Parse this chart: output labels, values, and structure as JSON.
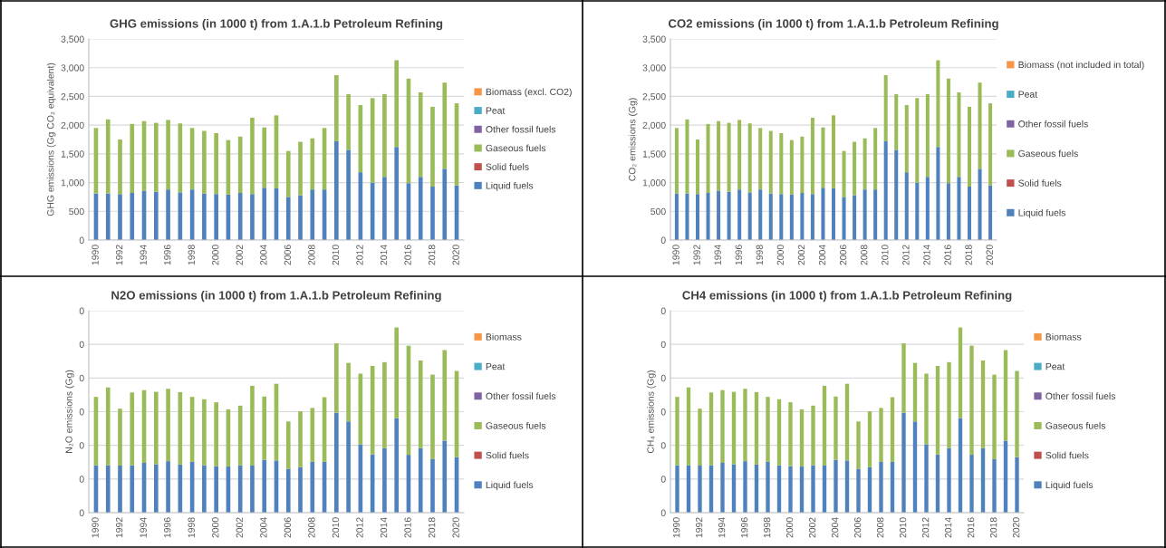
{
  "chart_data": [
    {
      "type": "bar",
      "stacked": true,
      "title": "GHG emissions (in 1000 t) from 1.A.1.b Petroleum Refining",
      "ylabel": "GHG emissions (Gg CO₂ equivalent)",
      "categories": [
        "1990",
        null,
        "1992",
        null,
        "1994",
        null,
        "1996",
        null,
        "1998",
        null,
        "2000",
        null,
        "2002",
        null,
        "2004",
        null,
        "2006",
        null,
        "2008",
        null,
        "2010",
        null,
        "2012",
        null,
        "2014",
        null,
        "2016",
        null,
        "2018",
        null,
        "2020"
      ],
      "ylim": [
        0,
        3500
      ],
      "yticks": [
        {
          "value": 0,
          "label": "0"
        },
        {
          "value": 500,
          "label": "500"
        },
        {
          "value": 1000,
          "label": "1,000"
        },
        {
          "value": 1500,
          "label": "1,500"
        },
        {
          "value": 2000,
          "label": "2,000"
        },
        {
          "value": 2500,
          "label": "2,500"
        },
        {
          "value": 3000,
          "label": "3,000"
        },
        {
          "value": 3500,
          "label": "3,500"
        }
      ],
      "grid": "y",
      "legend": "right",
      "series": [
        {
          "name": "Liquid fuels",
          "color": "#4f81bd",
          "values": [
            810,
            810,
            800,
            820,
            860,
            840,
            880,
            830,
            880,
            810,
            800,
            790,
            820,
            800,
            910,
            900,
            750,
            780,
            880,
            880,
            1720,
            1570,
            1180,
            1000,
            1100,
            1620,
            990,
            1100,
            930,
            1240,
            950
          ]
        },
        {
          "name": "Solid fuels",
          "color": "#c0504d",
          "values": [
            0,
            0,
            0,
            0,
            0,
            0,
            0,
            0,
            0,
            0,
            0,
            0,
            0,
            0,
            0,
            0,
            0,
            0,
            0,
            0,
            0,
            0,
            0,
            0,
            0,
            0,
            0,
            0,
            0,
            0,
            0
          ]
        },
        {
          "name": "Gaseous fuels",
          "color": "#9bbb59",
          "values": [
            1140,
            1290,
            950,
            1200,
            1210,
            1200,
            1210,
            1200,
            1070,
            1090,
            1060,
            950,
            980,
            1330,
            1050,
            1270,
            800,
            930,
            890,
            1070,
            1150,
            970,
            1170,
            1470,
            1440,
            1510,
            1820,
            1470,
            1390,
            1500,
            1430
          ]
        },
        {
          "name": "Other fossil fuels",
          "color": "#8064a2",
          "values": [
            0,
            0,
            0,
            0,
            0,
            0,
            0,
            0,
            0,
            0,
            0,
            0,
            0,
            0,
            0,
            0,
            0,
            0,
            0,
            0,
            0,
            0,
            0,
            0,
            0,
            0,
            0,
            0,
            0,
            0,
            0
          ]
        },
        {
          "name": "Peat",
          "color": "#4bacc6",
          "values": [
            0,
            0,
            0,
            0,
            0,
            0,
            0,
            0,
            0,
            0,
            0,
            0,
            0,
            0,
            0,
            0,
            0,
            0,
            0,
            0,
            0,
            0,
            0,
            0,
            0,
            0,
            0,
            0,
            0,
            0,
            0
          ]
        },
        {
          "name": "Biomass (excl. CO2)",
          "color": "#f79646",
          "values": [
            0,
            0,
            0,
            0,
            0,
            0,
            0,
            0,
            0,
            0,
            0,
            0,
            0,
            0,
            0,
            0,
            0,
            0,
            0,
            0,
            0,
            0,
            0,
            0,
            0,
            0,
            0,
            0,
            0,
            0,
            0
          ]
        }
      ]
    },
    {
      "type": "bar",
      "stacked": true,
      "title": "CO2 emissions (in 1000 t) from 1.A.1.b Petroleum Refining",
      "ylabel": "CO₂ emissions (Gg)",
      "categories": [
        "1990",
        null,
        "1992",
        null,
        "1994",
        null,
        "1996",
        null,
        "1998",
        null,
        "2000",
        null,
        "2002",
        null,
        "2004",
        null,
        "2006",
        null,
        "2008",
        null,
        "2010",
        null,
        "2012",
        null,
        "2014",
        null,
        "2016",
        null,
        "2018",
        null,
        "2020"
      ],
      "ylim": [
        0,
        3500
      ],
      "yticks": [
        {
          "value": 0,
          "label": "0"
        },
        {
          "value": 500,
          "label": "500"
        },
        {
          "value": 1000,
          "label": "1,000"
        },
        {
          "value": 1500,
          "label": "1,500"
        },
        {
          "value": 2000,
          "label": "2,000"
        },
        {
          "value": 2500,
          "label": "2,500"
        },
        {
          "value": 3000,
          "label": "3,000"
        },
        {
          "value": 3500,
          "label": "3,500"
        }
      ],
      "grid": "y",
      "legend": "right",
      "series": [
        {
          "name": "Liquid fuels",
          "color": "#4f81bd",
          "values": [
            810,
            810,
            800,
            820,
            860,
            840,
            880,
            830,
            880,
            810,
            800,
            790,
            820,
            800,
            910,
            900,
            750,
            780,
            880,
            880,
            1720,
            1570,
            1180,
            1000,
            1100,
            1620,
            990,
            1100,
            930,
            1240,
            950
          ]
        },
        {
          "name": "Solid fuels",
          "color": "#c0504d",
          "values": [
            0,
            0,
            0,
            0,
            0,
            0,
            0,
            0,
            0,
            0,
            0,
            0,
            0,
            0,
            0,
            0,
            0,
            0,
            0,
            0,
            0,
            0,
            0,
            0,
            0,
            0,
            0,
            0,
            0,
            0,
            0
          ]
        },
        {
          "name": "Gaseous fuels",
          "color": "#9bbb59",
          "values": [
            1140,
            1290,
            950,
            1200,
            1210,
            1200,
            1210,
            1200,
            1070,
            1090,
            1060,
            950,
            980,
            1330,
            1050,
            1270,
            800,
            930,
            890,
            1070,
            1150,
            970,
            1170,
            1470,
            1440,
            1510,
            1820,
            1470,
            1390,
            1500,
            1430
          ]
        },
        {
          "name": "Other fossil fuels",
          "color": "#8064a2",
          "values": [
            0,
            0,
            0,
            0,
            0,
            0,
            0,
            0,
            0,
            0,
            0,
            0,
            0,
            0,
            0,
            0,
            0,
            0,
            0,
            0,
            0,
            0,
            0,
            0,
            0,
            0,
            0,
            0,
            0,
            0,
            0
          ]
        },
        {
          "name": "Peat",
          "color": "#4bacc6",
          "values": [
            0,
            0,
            0,
            0,
            0,
            0,
            0,
            0,
            0,
            0,
            0,
            0,
            0,
            0,
            0,
            0,
            0,
            0,
            0,
            0,
            0,
            0,
            0,
            0,
            0,
            0,
            0,
            0,
            0,
            0,
            0
          ]
        },
        {
          "name": "Biomass (not included in total)",
          "color": "#f79646",
          "values": [
            0,
            0,
            0,
            0,
            0,
            0,
            0,
            0,
            0,
            0,
            0,
            0,
            0,
            0,
            0,
            0,
            0,
            0,
            0,
            0,
            0,
            0,
            0,
            0,
            0,
            0,
            0,
            0,
            0,
            0,
            0
          ]
        }
      ]
    },
    {
      "type": "bar",
      "stacked": true,
      "title": "N2O emissions (in 1000 t) from 1.A.1.b Petroleum Refining",
      "ylabel": "N₂O emissions (Gg)",
      "categories": [
        "1990",
        null,
        "1992",
        null,
        "1994",
        null,
        "1996",
        null,
        "1998",
        null,
        "2000",
        null,
        "2002",
        null,
        "2004",
        null,
        "2006",
        null,
        "2008",
        null,
        "2010",
        null,
        "2012",
        null,
        "2014",
        null,
        "2016",
        null,
        "2018",
        null,
        "2020"
      ],
      "ylim": [
        0,
        0.06
      ],
      "yticks": [
        {
          "value": 0,
          "label": "0"
        },
        {
          "value": 0.01,
          "label": "0"
        },
        {
          "value": 0.02,
          "label": "0"
        },
        {
          "value": 0.03,
          "label": "0"
        },
        {
          "value": 0.04,
          "label": "0"
        },
        {
          "value": 0.05,
          "label": "0"
        },
        {
          "value": 0.06,
          "label": "0"
        }
      ],
      "grid": "y",
      "legend": "right",
      "series": [
        {
          "name": "Liquid fuels",
          "color": "#4f81bd",
          "values": [
            0.0141,
            0.0141,
            0.014,
            0.0141,
            0.0148,
            0.0144,
            0.0153,
            0.0143,
            0.0151,
            0.0141,
            0.0138,
            0.0137,
            0.0141,
            0.014,
            0.0157,
            0.0155,
            0.013,
            0.0135,
            0.0151,
            0.0151,
            0.0297,
            0.0271,
            0.0203,
            0.0173,
            0.0192,
            0.0281,
            0.0172,
            0.0192,
            0.0159,
            0.0214,
            0.0165
          ]
        },
        {
          "name": "Solid fuels",
          "color": "#c0504d",
          "values": [
            0,
            0,
            0,
            0,
            0,
            0,
            0,
            0,
            0,
            0,
            0,
            0,
            0,
            0,
            0,
            0,
            0,
            0,
            0,
            0,
            0,
            0,
            0,
            0,
            0,
            0,
            0,
            0,
            0,
            0,
            0
          ]
        },
        {
          "name": "Gaseous fuels",
          "color": "#9bbb59",
          "values": [
            0.0203,
            0.0231,
            0.0169,
            0.0216,
            0.0216,
            0.0215,
            0.0215,
            0.0215,
            0.0193,
            0.0196,
            0.019,
            0.017,
            0.0177,
            0.0237,
            0.0188,
            0.0228,
            0.0141,
            0.0166,
            0.016,
            0.0192,
            0.0206,
            0.0174,
            0.021,
            0.0263,
            0.0255,
            0.0269,
            0.0324,
            0.026,
            0.0251,
            0.0269,
            0.0256
          ]
        },
        {
          "name": "Other fossil fuels",
          "color": "#8064a2",
          "values": [
            0,
            0,
            0,
            0,
            0,
            0,
            0,
            0,
            0,
            0,
            0,
            0,
            0,
            0,
            0,
            0,
            0,
            0,
            0,
            0,
            0,
            0,
            0,
            0,
            0,
            0,
            0,
            0,
            0,
            0,
            0
          ]
        },
        {
          "name": "Peat",
          "color": "#4bacc6",
          "values": [
            0,
            0,
            0,
            0,
            0,
            0,
            0,
            0,
            0,
            0,
            0,
            0,
            0,
            0,
            0,
            0,
            0,
            0,
            0,
            0,
            0,
            0,
            0,
            0,
            0,
            0,
            0,
            0,
            0,
            0,
            0
          ]
        },
        {
          "name": "Biomass",
          "color": "#f79646",
          "values": [
            0,
            0,
            0,
            0,
            0,
            0,
            0,
            0,
            0,
            0,
            0,
            0,
            0,
            0,
            0,
            0,
            0,
            0,
            0,
            0,
            0,
            0,
            0,
            0,
            0,
            0,
            0,
            0,
            0,
            0,
            0
          ]
        }
      ]
    },
    {
      "type": "bar",
      "stacked": true,
      "title": "CH4 emissions (in 1000 t) from 1.A.1.b Petroleum Refining",
      "ylabel": "CH₄ emissions (Gg)",
      "categories": [
        "1990",
        null,
        "1992",
        null,
        "1994",
        null,
        "1996",
        null,
        "1998",
        null,
        "2000",
        null,
        "2002",
        null,
        "2004",
        null,
        "2006",
        null,
        "2008",
        null,
        "2010",
        null,
        "2012",
        null,
        "2014",
        null,
        "2016",
        null,
        "2018",
        null,
        "2020"
      ],
      "ylim": [
        0,
        0.06
      ],
      "yticks": [
        {
          "value": 0,
          "label": "0"
        },
        {
          "value": 0.01,
          "label": "0"
        },
        {
          "value": 0.02,
          "label": "0"
        },
        {
          "value": 0.03,
          "label": "0"
        },
        {
          "value": 0.04,
          "label": "0"
        },
        {
          "value": 0.05,
          "label": "0"
        },
        {
          "value": 0.06,
          "label": "0"
        }
      ],
      "grid": "y",
      "legend": "right",
      "series": [
        {
          "name": "Liquid fuels",
          "color": "#4f81bd",
          "values": [
            0.0141,
            0.0141,
            0.014,
            0.0141,
            0.0148,
            0.0144,
            0.0153,
            0.0143,
            0.0151,
            0.0141,
            0.0138,
            0.0137,
            0.0141,
            0.014,
            0.0157,
            0.0155,
            0.013,
            0.0135,
            0.0151,
            0.0151,
            0.0297,
            0.0271,
            0.0203,
            0.0173,
            0.0192,
            0.0281,
            0.0172,
            0.0192,
            0.0159,
            0.0214,
            0.0165
          ]
        },
        {
          "name": "Solid fuels",
          "color": "#c0504d",
          "values": [
            0,
            0,
            0,
            0,
            0,
            0,
            0,
            0,
            0,
            0,
            0,
            0,
            0,
            0,
            0,
            0,
            0,
            0,
            0,
            0,
            0,
            0,
            0,
            0,
            0,
            0,
            0,
            0,
            0,
            0,
            0
          ]
        },
        {
          "name": "Gaseous fuels",
          "color": "#9bbb59",
          "values": [
            0.0203,
            0.0231,
            0.0169,
            0.0216,
            0.0216,
            0.0215,
            0.0215,
            0.0215,
            0.0193,
            0.0196,
            0.019,
            0.017,
            0.0177,
            0.0237,
            0.0188,
            0.0228,
            0.0141,
            0.0166,
            0.016,
            0.0192,
            0.0206,
            0.0174,
            0.021,
            0.0263,
            0.0255,
            0.0269,
            0.0324,
            0.026,
            0.0251,
            0.0269,
            0.0256
          ]
        },
        {
          "name": "Other fossil fuels",
          "color": "#8064a2",
          "values": [
            0,
            0,
            0,
            0,
            0,
            0,
            0,
            0,
            0,
            0,
            0,
            0,
            0,
            0,
            0,
            0,
            0,
            0,
            0,
            0,
            0,
            0,
            0,
            0,
            0,
            0,
            0,
            0,
            0,
            0,
            0
          ]
        },
        {
          "name": "Peat",
          "color": "#4bacc6",
          "values": [
            0,
            0,
            0,
            0,
            0,
            0,
            0,
            0,
            0,
            0,
            0,
            0,
            0,
            0,
            0,
            0,
            0,
            0,
            0,
            0,
            0,
            0,
            0,
            0,
            0,
            0,
            0,
            0,
            0,
            0,
            0
          ]
        },
        {
          "name": "Biomass",
          "color": "#f79646",
          "values": [
            0,
            0,
            0,
            0,
            0,
            0,
            0,
            0,
            0,
            0,
            0,
            0,
            0,
            0,
            0,
            0,
            0,
            0,
            0,
            0,
            0,
            0,
            0,
            0,
            0,
            0,
            0,
            0,
            0,
            0,
            0
          ]
        }
      ]
    }
  ]
}
